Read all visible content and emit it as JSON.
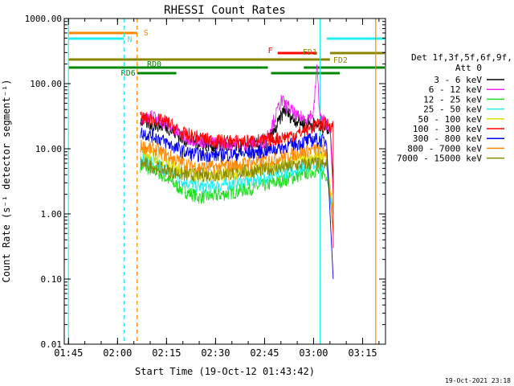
{
  "chart_data": {
    "type": "line",
    "title": "RHESSI Count Rates",
    "xlabel": "Start Time (19-Oct-12 01:43:42)",
    "ylabel": "Count Rate (s⁻¹ detector segment⁻¹)",
    "x_range": [
      "01:43:42",
      "03:22:00"
    ],
    "ylim": [
      0.01,
      1000
    ],
    "y_scale": "log",
    "x_ticks": [
      "01:45",
      "02:00",
      "02:15",
      "02:30",
      "02:45",
      "03:00",
      "03:15"
    ],
    "y_ticks": [
      "0.01",
      "0.10",
      "1.00",
      "10.00",
      "100.00",
      "1000.00"
    ],
    "legend_header": [
      "Det 1f,3f,5f,6f,9f,",
      "Att 0"
    ],
    "legend_position": "right",
    "footer_date": "19-Oct-2021 23:18",
    "series": [
      {
        "name": "3 - 6 keV",
        "color": "#000000",
        "start": "02:07",
        "end": "03:06",
        "points": [
          [
            "02:07",
            27
          ],
          [
            "02:10",
            24
          ],
          [
            "02:15",
            22
          ],
          [
            "02:20",
            14
          ],
          [
            "02:30",
            11
          ],
          [
            "02:40",
            11
          ],
          [
            "02:45",
            12
          ],
          [
            "02:48",
            18
          ],
          [
            "02:51",
            40
          ],
          [
            "02:54",
            28
          ],
          [
            "02:57",
            25
          ],
          [
            "03:00",
            24
          ],
          [
            "03:03",
            22
          ],
          [
            "03:05",
            20
          ],
          [
            "03:06",
            3
          ]
        ]
      },
      {
        "name": "6 - 12 keV",
        "color": "#ee22ee",
        "start": "02:07",
        "end": "03:06",
        "points": [
          [
            "02:07",
            28
          ],
          [
            "02:10",
            32
          ],
          [
            "02:15",
            24
          ],
          [
            "02:20",
            15
          ],
          [
            "02:30",
            12
          ],
          [
            "02:40",
            12
          ],
          [
            "02:45",
            13
          ],
          [
            "02:48",
            28
          ],
          [
            "02:50",
            55
          ],
          [
            "02:53",
            40
          ],
          [
            "02:55",
            30
          ],
          [
            "02:58",
            30
          ],
          [
            "03:00",
            35
          ],
          [
            "03:01",
            190
          ],
          [
            "03:02",
            30
          ],
          [
            "03:05",
            22
          ],
          [
            "03:06",
            2
          ]
        ]
      },
      {
        "name": "12 - 25 keV",
        "color": "#22dd22",
        "start": "02:07",
        "end": "03:06",
        "points": [
          [
            "02:07",
            5.5
          ],
          [
            "02:12",
            4.5
          ],
          [
            "02:20",
            2.3
          ],
          [
            "02:25",
            1.8
          ],
          [
            "02:30",
            1.9
          ],
          [
            "02:40",
            2.4
          ],
          [
            "02:48",
            3.0
          ],
          [
            "02:55",
            3.8
          ],
          [
            "03:00",
            4.6
          ],
          [
            "03:04",
            4.0
          ],
          [
            "03:06",
            1.0
          ]
        ]
      },
      {
        "name": "25 - 50 keV",
        "color": "#22eeee",
        "start": "02:07",
        "end": "03:06",
        "points": [
          [
            "02:07",
            7.0
          ],
          [
            "02:12",
            6.0
          ],
          [
            "02:20",
            3.2
          ],
          [
            "02:25",
            2.6
          ],
          [
            "02:30",
            2.7
          ],
          [
            "02:40",
            3.2
          ],
          [
            "02:48",
            4.0
          ],
          [
            "02:55",
            5.0
          ],
          [
            "03:00",
            6.0
          ],
          [
            "03:04",
            5.2
          ],
          [
            "03:06",
            1.0
          ]
        ]
      },
      {
        "name": "50 - 100 keV",
        "color": "#dddd00",
        "start": "02:07",
        "end": "03:06",
        "points": [
          [
            "02:07",
            9.0
          ],
          [
            "02:12",
            7.5
          ],
          [
            "02:20",
            4.5
          ],
          [
            "02:25",
            3.8
          ],
          [
            "02:30",
            4.0
          ],
          [
            "02:40",
            4.5
          ],
          [
            "02:48",
            5.3
          ],
          [
            "02:55",
            6.5
          ],
          [
            "03:00",
            7.5
          ],
          [
            "03:04",
            7.0
          ],
          [
            "03:06",
            1.2
          ]
        ]
      },
      {
        "name": "100 - 300 keV",
        "color": "#ff0000",
        "start": "02:07",
        "end": "03:06",
        "points": [
          [
            "02:07",
            30
          ],
          [
            "02:10",
            28
          ],
          [
            "02:15",
            26
          ],
          [
            "02:20",
            17
          ],
          [
            "02:30",
            13
          ],
          [
            "02:40",
            13
          ],
          [
            "02:48",
            14
          ],
          [
            "02:55",
            17
          ],
          [
            "03:00",
            22
          ],
          [
            "03:04",
            24
          ],
          [
            "03:06",
            22
          ],
          [
            "03:06",
            0.3
          ]
        ]
      },
      {
        "name": "300 - 800 keV",
        "color": "#0000ee",
        "start": "02:07",
        "end": "03:06",
        "points": [
          [
            "02:07",
            18
          ],
          [
            "02:12",
            15
          ],
          [
            "02:20",
            9
          ],
          [
            "02:25",
            8
          ],
          [
            "02:30",
            8
          ],
          [
            "02:40",
            8.5
          ],
          [
            "02:48",
            10
          ],
          [
            "02:55",
            12
          ],
          [
            "03:00",
            14
          ],
          [
            "03:04",
            13
          ],
          [
            "03:06",
            0.1
          ]
        ]
      },
      {
        "name": "800 - 7000 keV",
        "color": "#ff8800",
        "start": "02:07",
        "end": "03:06",
        "points": [
          [
            "02:07",
            11
          ],
          [
            "02:12",
            9.5
          ],
          [
            "02:20",
            6
          ],
          [
            "02:25",
            5.2
          ],
          [
            "02:30",
            5.2
          ],
          [
            "02:40",
            6
          ],
          [
            "02:48",
            7
          ],
          [
            "02:55",
            8.5
          ],
          [
            "03:00",
            10
          ],
          [
            "03:04",
            9
          ],
          [
            "03:06",
            0.5
          ]
        ]
      },
      {
        "name": "7000 - 15000 keV",
        "color": "#888800",
        "start": "02:07",
        "end": "03:06",
        "points": [
          [
            "02:07",
            6
          ],
          [
            "02:20",
            4
          ],
          [
            "02:30",
            4
          ],
          [
            "02:48",
            5
          ],
          [
            "03:00",
            6
          ],
          [
            "03:04",
            5.5
          ],
          [
            "03:06",
            0.6
          ]
        ]
      }
    ],
    "flag_bars": [
      {
        "label": "S",
        "color": "#ff8800",
        "start": "01:45",
        "end": "02:06"
      },
      {
        "label": "N",
        "color": "#22eeee",
        "start": "01:45",
        "end": "02:02"
      },
      {
        "label": "",
        "color": "#22eeee",
        "start": "03:04",
        "end": "03:22"
      },
      {
        "label": "F",
        "color": "#ff0000",
        "start": "02:49",
        "end": "03:01"
      },
      {
        "label": "FD1",
        "color": "#888800",
        "start": "01:45",
        "end": "03:05"
      },
      {
        "label": "FD2",
        "color": "#888800",
        "start": "03:05",
        "end": "03:22"
      },
      {
        "label": "RD0",
        "color": "#008800",
        "start": "01:45",
        "end": "02:46"
      },
      {
        "label": "",
        "color": "#008800",
        "start": "02:57",
        "end": "03:22"
      },
      {
        "label": "RD6",
        "color": "#008800",
        "start": "02:06",
        "end": "02:18"
      },
      {
        "label": "",
        "color": "#008800",
        "start": "02:47",
        "end": "03:08"
      }
    ],
    "vertical_lines": [
      {
        "time": "01:45",
        "color": "#22eeee",
        "style": "solid"
      },
      {
        "time": "02:02",
        "color": "#22eeee",
        "style": "dashed"
      },
      {
        "time": "02:06",
        "color": "#ff8800",
        "style": "dashed"
      },
      {
        "time": "03:02",
        "color": "#22eeee",
        "style": "solid"
      },
      {
        "time": "03:19",
        "color": "#ff8800",
        "style": "solid"
      }
    ]
  }
}
